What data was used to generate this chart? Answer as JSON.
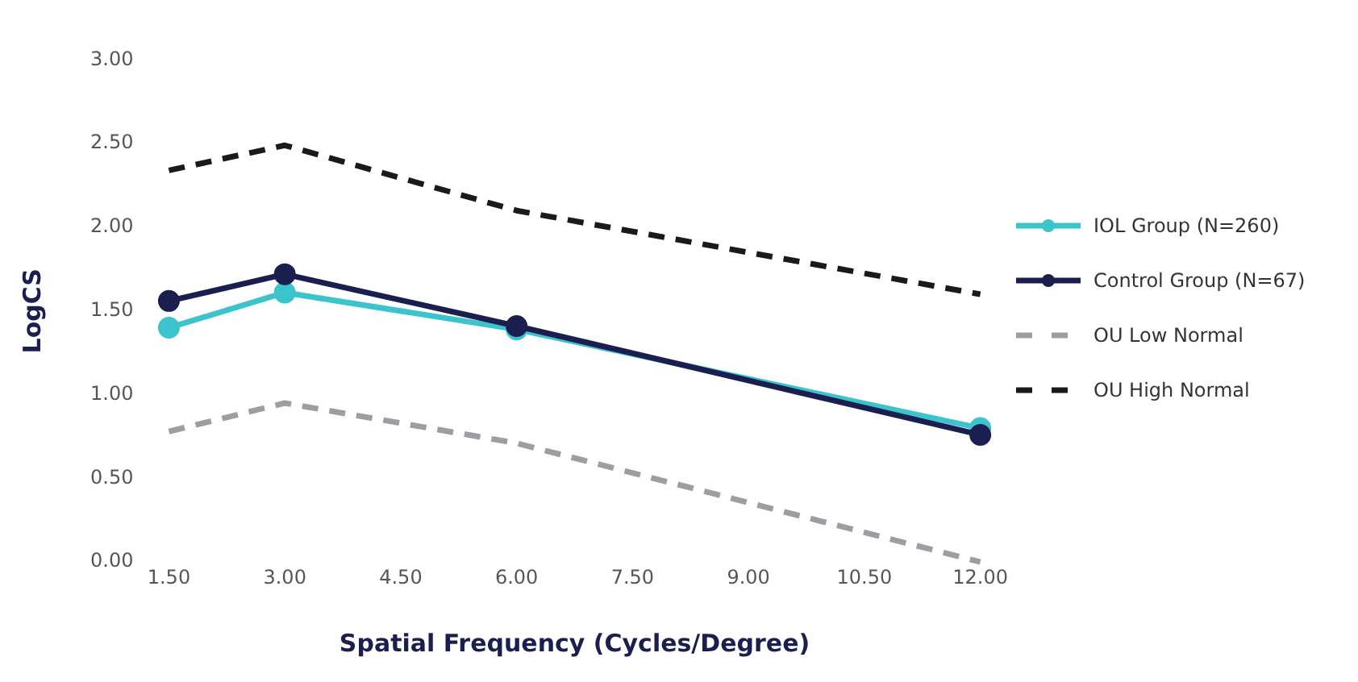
{
  "chart_data": {
    "type": "line",
    "xlabel": "Spatial Frequency (Cycles/Degree)",
    "ylabel": "LogCS",
    "x": [
      1.5,
      3,
      6,
      12
    ],
    "series": [
      {
        "name": "IOL Group (N=260)",
        "color": "#3bc4cc",
        "values": [
          1.4,
          1.61,
          1.39,
          0.8
        ],
        "marker": "circle",
        "line_style": "solid"
      },
      {
        "name": "Control Group (N=67)",
        "color": "#1b1f4f",
        "values": [
          1.56,
          1.72,
          1.41,
          0.76
        ],
        "marker": "circle",
        "line_style": "solid"
      },
      {
        "name": "OU Low Normal",
        "color": "#9d9ea2",
        "values": [
          0.78,
          0.95,
          0.71,
          0
        ],
        "marker": "none",
        "line_style": "dashed"
      },
      {
        "name": "OU High Normal",
        "color": "#1a1a1a",
        "values": [
          2.34,
          2.49,
          2.1,
          1.6
        ],
        "marker": "none",
        "line_style": "dashed"
      }
    ],
    "xlim": [
      1.5,
      12
    ],
    "xticks": [
      {
        "value": 1.5,
        "label": "1.50"
      },
      {
        "value": 3,
        "label": "3.00"
      },
      {
        "value": 4.5,
        "label": "4.50"
      },
      {
        "value": 6,
        "label": "6.00"
      },
      {
        "value": 7.5,
        "label": "7.50"
      },
      {
        "value": 9,
        "label": "9.00"
      },
      {
        "value": 10.5,
        "label": "10.50"
      },
      {
        "value": 12,
        "label": "12.00"
      }
    ],
    "ylim": [
      0,
      3
    ],
    "yticks": [
      {
        "value": 0,
        "label": "0.00"
      },
      {
        "value": 0.5,
        "label": "0.50"
      },
      {
        "value": 1,
        "label": "1.00"
      },
      {
        "value": 1.5,
        "label": "1.50"
      },
      {
        "value": 2,
        "label": "2.00"
      },
      {
        "value": 2.5,
        "label": "2.50"
      },
      {
        "value": 3,
        "label": "3.00"
      }
    ],
    "grid": false,
    "legend": "right"
  }
}
